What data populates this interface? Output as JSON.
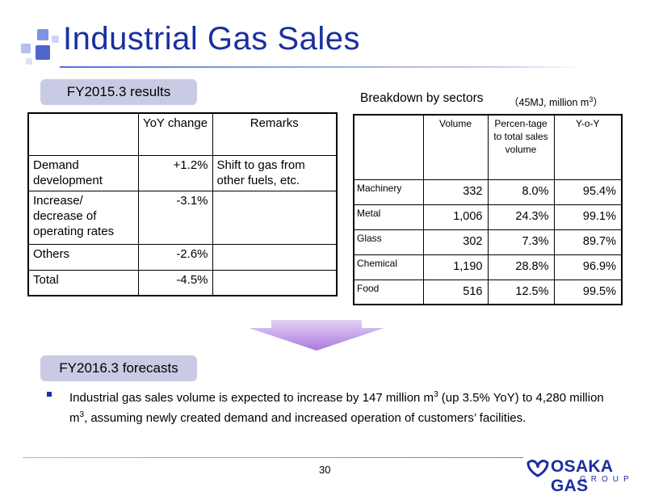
{
  "title": "Industrial Gas Sales",
  "results_label": "FY2015.3 results",
  "left_table": {
    "headers": [
      "",
      "YoY change",
      "Remarks"
    ],
    "rows": [
      {
        "label": "Demand development",
        "yoy": "+1.2%",
        "remarks": "Shift to gas from other fuels, etc."
      },
      {
        "label": "Increase/ decrease of operating rates",
        "yoy": "-3.1%",
        "remarks": ""
      },
      {
        "label": "Others",
        "yoy": "-2.6%",
        "remarks": ""
      },
      {
        "label": "Total",
        "yoy": "-4.5%",
        "remarks": ""
      }
    ]
  },
  "breakdown": {
    "title": "Breakdown by sectors",
    "unit_prefix": "（45MJ, million m",
    "unit_exp": "3",
    "unit_suffix": "）",
    "headers": [
      "",
      "Volume",
      "Percen-tage to total sales volume",
      "Y-o-Y"
    ],
    "rows": [
      {
        "sector": "Machinery",
        "volume": "332",
        "percent": "8.0%",
        "yoy": "95.4%"
      },
      {
        "sector": "Metal",
        "volume": "1,006",
        "percent": "24.3%",
        "yoy": "99.1%"
      },
      {
        "sector": "Glass",
        "volume": "302",
        "percent": "7.3%",
        "yoy": "89.7%"
      },
      {
        "sector": "Chemical",
        "volume": "1,190",
        "percent": "28.8%",
        "yoy": "96.9%"
      },
      {
        "sector": "Food",
        "volume": "516",
        "percent": "12.5%",
        "yoy": "99.5%"
      }
    ]
  },
  "forecast_label": "FY2016.3 forecasts",
  "forecast": {
    "part1": "Industrial gas sales volume is expected to increase by 147 million m",
    "exp1": "3",
    "part2": " (up 3.5% YoY) to 4,280 million m",
    "exp2": "3",
    "part3": ", assuming newly created demand and increased operation of customers’ facilities."
  },
  "page_number": "30",
  "logo": {
    "name": "OSAKA GAS",
    "group": "GROUP"
  },
  "colors": {
    "title": "#1a2fa0",
    "label_bg": "#c9cbe4",
    "arrow": "#b98ee0"
  }
}
